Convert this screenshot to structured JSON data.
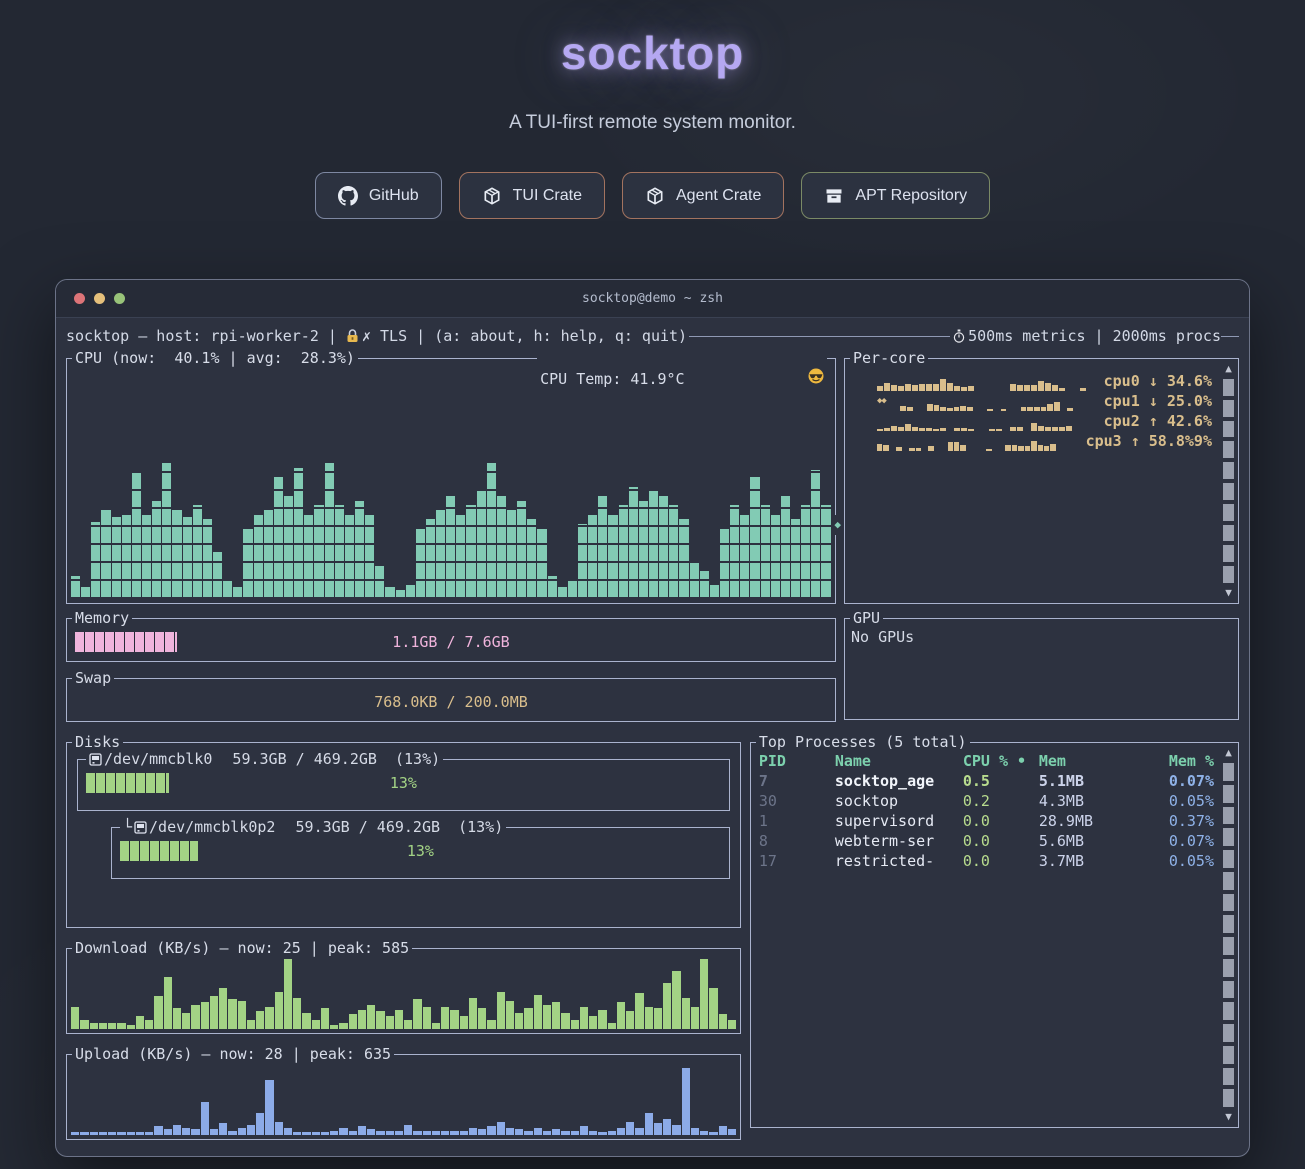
{
  "hero": {
    "title": "socktop",
    "subtitle": "A TUI-first remote system monitor.",
    "buttons": [
      {
        "label": "GitHub",
        "icon": "github-icon",
        "border": "#7e88a2"
      },
      {
        "label": "TUI Crate",
        "icon": "package-icon",
        "border": "#a3735f"
      },
      {
        "label": "Agent Crate",
        "icon": "package-icon",
        "border": "#a3735f"
      },
      {
        "label": "APT Repository",
        "icon": "archive-icon",
        "border": "#7b8a66"
      }
    ]
  },
  "window": {
    "title": "socktop@demo ~ zsh",
    "traffic_lights": [
      "#dd7478",
      "#e5c07b",
      "#98c379"
    ]
  },
  "statusbar": {
    "left": "socktop — host: rpi-worker-2 | ",
    "tls": "✗ TLS ",
    "keys": "| (a: about, h: help, q: quit)",
    "right": "500ms metrics | 2000ms procs"
  },
  "cpu": {
    "title": "CPU (now:  40.1% | avg:  28.3%)",
    "temp_label": "CPU Temp: 41.9°C ",
    "marker": "◆",
    "history": [
      10,
      5,
      33,
      38,
      35,
      36,
      54,
      36,
      42,
      58,
      38,
      35,
      40,
      34,
      20,
      8,
      5,
      30,
      36,
      38,
      52,
      44,
      56,
      36,
      40,
      58,
      40,
      36,
      42,
      36,
      14,
      5,
      4,
      6,
      30,
      34,
      38,
      44,
      36,
      40,
      46,
      58,
      44,
      38,
      42,
      34,
      30,
      10,
      5,
      8,
      32,
      36,
      44,
      36,
      40,
      48,
      42,
      46,
      44,
      40,
      34,
      16,
      12,
      6,
      30,
      40,
      36,
      52,
      40,
      36,
      44,
      34,
      40,
      55,
      40
    ]
  },
  "percore": {
    "title": "Per-core",
    "cores": [
      {
        "name": "cpu0",
        "arrow": "↓",
        "pct": "34.6%",
        "prefix": "",
        "spark": [
          35,
          55,
          40,
          35,
          45,
          42,
          45,
          45,
          50,
          78,
          52,
          35,
          28,
          32,
          0,
          0,
          0,
          0,
          0,
          48,
          42,
          40,
          40,
          68,
          52,
          38,
          22,
          0,
          0,
          20,
          0,
          0
        ]
      },
      {
        "name": "cpu1",
        "arrow": "↓",
        "pct": "25.0%",
        "prefix": "◆◆",
        "spark": [
          0,
          0,
          35,
          30,
          0,
          0,
          45,
          40,
          25,
          22,
          28,
          32,
          28,
          0,
          0,
          14,
          0,
          14,
          0,
          0,
          28,
          28,
          28,
          30,
          48,
          62,
          0,
          18,
          0,
          0,
          0,
          0
        ]
      },
      {
        "name": "cpu2",
        "arrow": "↑",
        "pct": "42.6%",
        "prefix": "",
        "spark": [
          15,
          18,
          32,
          25,
          45,
          30,
          22,
          20,
          15,
          18,
          0,
          22,
          18,
          15,
          0,
          0,
          16,
          16,
          0,
          30,
          24,
          0,
          52,
          32,
          24,
          26,
          30,
          36,
          0,
          0,
          0,
          0
        ]
      },
      {
        "name": "cpu3",
        "arrow": "↑",
        "pct": "58.8%9%",
        "prefix": "",
        "spark": [
          48,
          42,
          0,
          26,
          0,
          20,
          22,
          0,
          32,
          0,
          0,
          58,
          58,
          42,
          0,
          0,
          0,
          16,
          0,
          0,
          42,
          42,
          36,
          32,
          68,
          38,
          32,
          48,
          0,
          0,
          0,
          0
        ]
      }
    ]
  },
  "memory": {
    "title": "Memory",
    "label": "1.1GB / 7.6GB",
    "pct": 13.5
  },
  "swap": {
    "title": "Swap",
    "label": "768.0KB / 200.0MB",
    "pct": 0
  },
  "gpu": {
    "title": "GPU",
    "text": "No GPUs"
  },
  "disks": {
    "title": "Disks",
    "entries": [
      {
        "prefix": "",
        "name": "/dev/mmcblk0",
        "detail": "  59.3GB / 469.2GB  (13%)",
        "pct": 13,
        "label": "13%",
        "nested": false
      },
      {
        "prefix": "└",
        "name": "/dev/mmcblk0p2",
        "detail": "  59.3GB / 469.2GB  (13%)",
        "pct": 13,
        "label": "13%",
        "nested": true
      }
    ]
  },
  "processes": {
    "title": "Top Processes (5 total)",
    "headers": {
      "pid": "PID",
      "name": "Name",
      "cpu": "CPU % •",
      "mem": "Mem",
      "memp": "Mem %"
    },
    "rows": [
      {
        "pid": "7",
        "name": "socktop_age",
        "cpu": "0.5",
        "mem": "5.1MB",
        "memp": "0.07%",
        "bold": true
      },
      {
        "pid": "30",
        "name": "socktop",
        "cpu": "0.2",
        "mem": "4.3MB",
        "memp": "0.05%",
        "bold": false
      },
      {
        "pid": "1",
        "name": "supervisord",
        "cpu": "0.0",
        "mem": "28.9MB",
        "memp": "0.37%",
        "bold": false
      },
      {
        "pid": "8",
        "name": "webterm-ser",
        "cpu": "0.0",
        "mem": "5.6MB",
        "memp": "0.07%",
        "bold": false
      },
      {
        "pid": "17",
        "name": "restricted-",
        "cpu": "0.0",
        "mem": "3.7MB",
        "memp": "0.05%",
        "bold": false
      }
    ]
  },
  "download": {
    "title": "Download (KB/s) — now: 25 | peak: 585",
    "bars": [
      30,
      12,
      8,
      8,
      8,
      8,
      6,
      18,
      12,
      45,
      70,
      28,
      22,
      32,
      36,
      44,
      56,
      40,
      38,
      12,
      25,
      30,
      50,
      95,
      42,
      22,
      12,
      28,
      6,
      8,
      20,
      26,
      32,
      24,
      18,
      26,
      12,
      40,
      30,
      8,
      30,
      26,
      18,
      42,
      28,
      12,
      50,
      38,
      22,
      28,
      46,
      32,
      36,
      22,
      12,
      30,
      18,
      26,
      8,
      36,
      24,
      48,
      30,
      28,
      62,
      78,
      42,
      30,
      95,
      55,
      20,
      12
    ]
  },
  "upload": {
    "title": "Upload (KB/s) — now: 28 | peak: 635",
    "bars": [
      4,
      4,
      4,
      4,
      4,
      4,
      4,
      4,
      4,
      12,
      8,
      14,
      10,
      8,
      45,
      8,
      16,
      6,
      10,
      14,
      30,
      75,
      18,
      10,
      4,
      4,
      4,
      4,
      6,
      10,
      6,
      12,
      8,
      6,
      6,
      6,
      14,
      6,
      6,
      6,
      6,
      6,
      6,
      10,
      8,
      12,
      18,
      10,
      8,
      6,
      10,
      6,
      8,
      6,
      6,
      12,
      6,
      4,
      6,
      10,
      18,
      10,
      30,
      16,
      22,
      14,
      90,
      10,
      6,
      4,
      12,
      8
    ]
  },
  "icons": {
    "up": "▲",
    "down": "▼"
  },
  "colors": {
    "cpu_teal": "#82cbb4",
    "core_tan": "#d9be8c",
    "net_green": "#a3d385",
    "net_blue": "#8cabe8",
    "mem_pink": "#f0b4dc",
    "swap_tan": "#d9be8c",
    "disk_green": "#a3d385",
    "header_teal": "#7cd0ad",
    "border": "#aab3ce"
  }
}
